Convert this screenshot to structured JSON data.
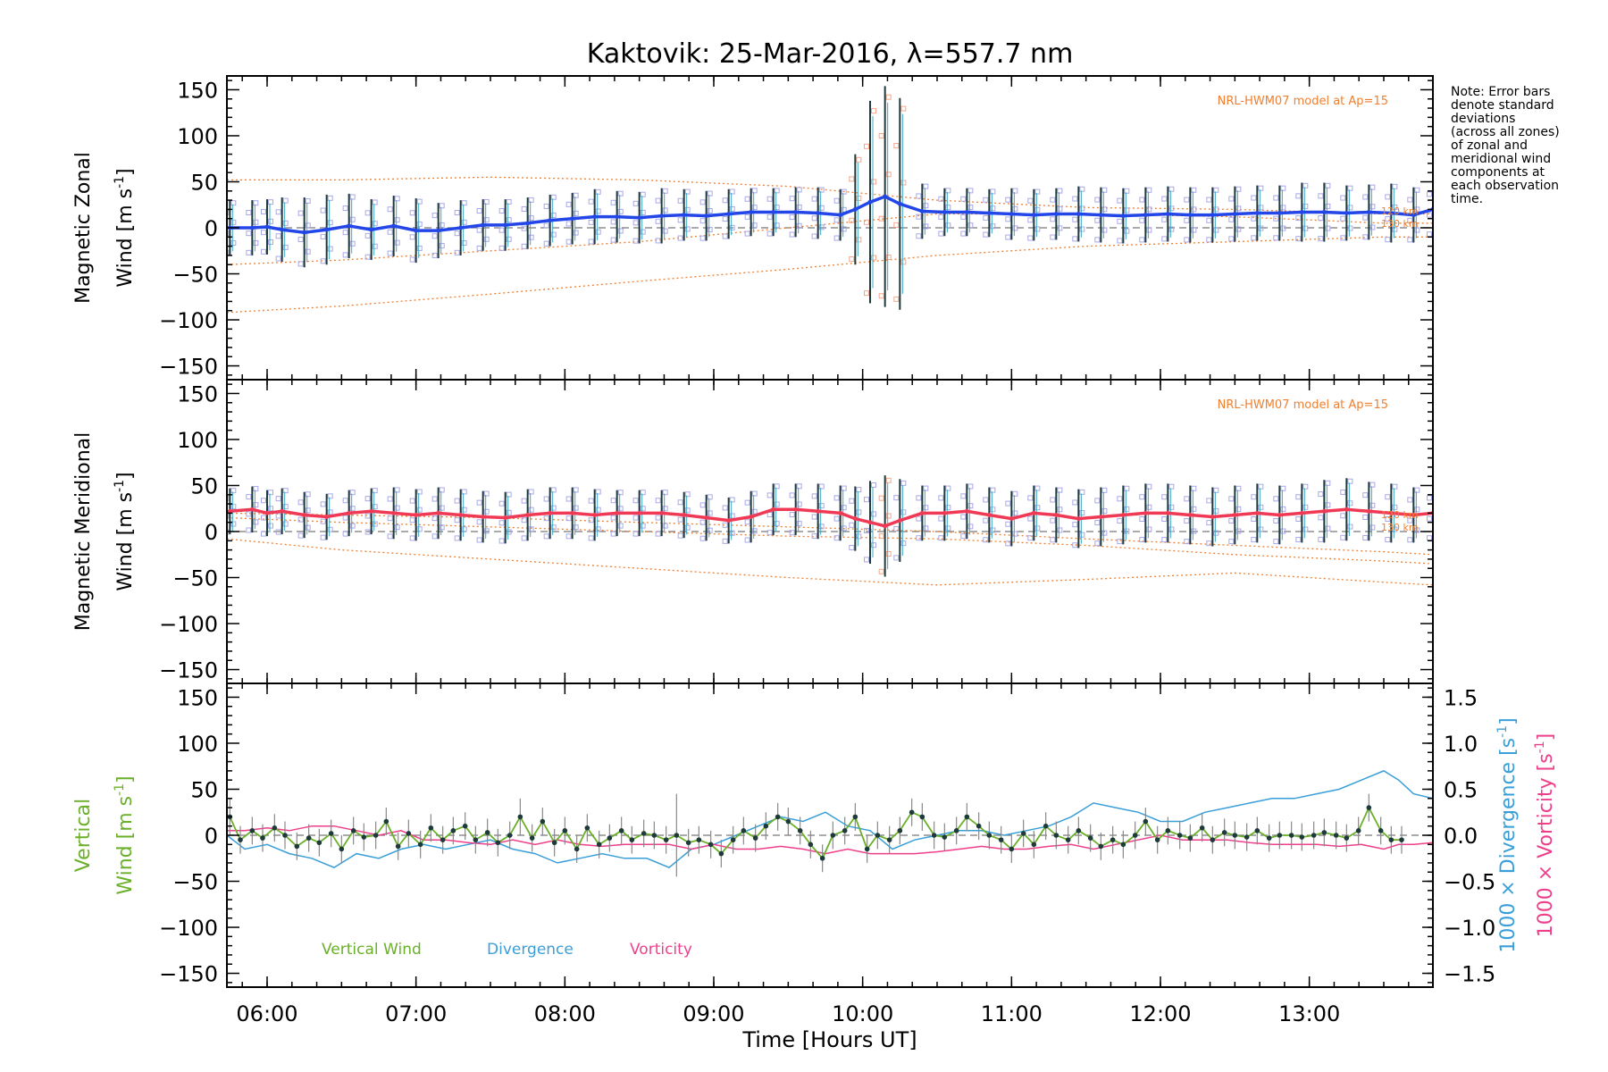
{
  "colors": {
    "zonal": "#2346e8",
    "meridional": "#f03a55",
    "vertical": "#6ab02a",
    "divergence": "#3a9fd8",
    "vorticity": "#ee3f8a",
    "model": "#f08030",
    "scatter": "#a8a8e8",
    "errorbar": "#1f3a3a"
  },
  "chart_data": {
    "type": "line",
    "title": "Kaktovik: 25-Mar-2016, λ=557.7 nm",
    "xlabel": "Time [Hours UT]",
    "x_tick_labels": [
      "06:00",
      "07:00",
      "08:00",
      "09:00",
      "10:00",
      "11:00",
      "12:00",
      "13:00"
    ],
    "x_tick_values": [
      6,
      7,
      8,
      9,
      10,
      11,
      12,
      13
    ],
    "xlim": [
      5.73,
      13.83
    ],
    "y_tick_labels": [
      "150",
      "100",
      "50",
      "0",
      "−50",
      "−100",
      "−150"
    ],
    "y_tick_values": [
      150,
      100,
      50,
      0,
      -50,
      -100,
      -150
    ],
    "ylim": [
      -165,
      165
    ],
    "right_tick_labels": [
      "1.5",
      "1.0",
      "0.5",
      "0.0",
      "−0.5",
      "−1.0",
      "−1.5"
    ],
    "right_tick_values": [
      1.5,
      1.0,
      0.5,
      0.0,
      -0.5,
      -1.0,
      -1.5
    ],
    "note": [
      "Note: Error bars",
      "denote standard",
      "deviations",
      "(across all zones)",
      "of zonal and",
      "meridional wind",
      "components at",
      "each observation",
      "time."
    ],
    "panels": [
      {
        "ylabel_line1": "Magnetic Zonal",
        "ylabel_line2": "Wind [m s",
        "ylabel_sup": "-1",
        "ylabel_end": "]",
        "model_label": "NRL-HWM07 model at Ap=15",
        "alt_labels": [
          "120 km",
          "130 km"
        ],
        "series": {
          "name": "",
          "x": [
            5.75,
            5.9,
            6.0,
            6.1,
            6.25,
            6.4,
            6.55,
            6.7,
            6.85,
            7.0,
            7.15,
            7.3,
            7.45,
            7.6,
            7.75,
            7.9,
            8.05,
            8.2,
            8.35,
            8.5,
            8.65,
            8.8,
            8.95,
            9.1,
            9.25,
            9.4,
            9.55,
            9.7,
            9.85,
            9.95,
            10.05,
            10.15,
            10.25,
            10.4,
            10.55,
            10.7,
            10.85,
            11.0,
            11.15,
            11.3,
            11.45,
            11.6,
            11.75,
            11.9,
            12.05,
            12.2,
            12.35,
            12.5,
            12.65,
            12.8,
            12.95,
            13.1,
            13.25,
            13.4,
            13.55,
            13.7,
            13.83
          ],
          "values": [
            0,
            0,
            1,
            -2,
            -5,
            -2,
            2,
            -2,
            2,
            -3,
            -3,
            0,
            3,
            3,
            5,
            8,
            10,
            12,
            12,
            11,
            13,
            14,
            13,
            15,
            17,
            17,
            17,
            16,
            14,
            20,
            28,
            34,
            26,
            18,
            17,
            17,
            16,
            15,
            14,
            15,
            15,
            14,
            13,
            14,
            15,
            14,
            14,
            15,
            16,
            16,
            17,
            17,
            16,
            17,
            16,
            14,
            20
          ],
          "err": [
            30,
            30,
            30,
            35,
            38,
            38,
            35,
            33,
            33,
            35,
            30,
            30,
            28,
            28,
            28,
            28,
            28,
            30,
            28,
            28,
            30,
            28,
            27,
            27,
            26,
            26,
            27,
            28,
            28,
            60,
            110,
            120,
            115,
            30,
            26,
            26,
            26,
            28,
            28,
            28,
            30,
            30,
            30,
            30,
            30,
            30,
            30,
            30,
            30,
            30,
            32,
            32,
            30,
            30,
            32,
            30,
            30
          ]
        },
        "model_x": [
          5.73,
          6.5,
          7.5,
          8.5,
          9.5,
          10.5,
          11.5,
          12.5,
          13.5,
          13.83
        ],
        "model_upper": [
          52,
          52,
          55,
          52,
          45,
          30,
          22,
          20,
          15,
          15
        ],
        "model_mid": [
          -40,
          -35,
          -25,
          -15,
          0,
          15,
          15,
          12,
          5,
          5
        ],
        "model_lower": [
          -92,
          -85,
          -72,
          -58,
          -45,
          -30,
          -20,
          -15,
          -10,
          -10
        ],
        "ylim": [
          -165,
          165
        ]
      },
      {
        "ylabel_line1": "Magnetic Meridional",
        "ylabel_line2": "Wind [m s",
        "ylabel_sup": "-1",
        "ylabel_end": "]",
        "model_label": "NRL-HWM07 model at Ap=15",
        "alt_labels": [
          "120 km",
          "130 km"
        ],
        "series": {
          "name": "",
          "x": [
            5.75,
            5.9,
            6.0,
            6.1,
            6.25,
            6.4,
            6.55,
            6.7,
            6.85,
            7.0,
            7.15,
            7.3,
            7.45,
            7.6,
            7.75,
            7.9,
            8.05,
            8.2,
            8.35,
            8.5,
            8.65,
            8.8,
            8.95,
            9.1,
            9.25,
            9.4,
            9.55,
            9.7,
            9.85,
            9.95,
            10.05,
            10.15,
            10.25,
            10.4,
            10.55,
            10.7,
            10.85,
            11.0,
            11.15,
            11.3,
            11.45,
            11.6,
            11.75,
            11.9,
            12.05,
            12.2,
            12.35,
            12.5,
            12.65,
            12.8,
            12.95,
            13.1,
            13.25,
            13.4,
            13.55,
            13.7,
            13.83
          ],
          "values": [
            22,
            24,
            20,
            22,
            18,
            16,
            20,
            22,
            20,
            18,
            20,
            18,
            16,
            15,
            18,
            20,
            20,
            18,
            20,
            20,
            20,
            18,
            15,
            12,
            16,
            24,
            24,
            22,
            20,
            14,
            10,
            6,
            12,
            20,
            20,
            22,
            18,
            14,
            20,
            18,
            14,
            16,
            18,
            20,
            20,
            18,
            16,
            18,
            20,
            18,
            20,
            22,
            24,
            22,
            20,
            18,
            20
          ],
          "err": [
            25,
            25,
            25,
            25,
            25,
            25,
            25,
            25,
            28,
            28,
            28,
            28,
            28,
            28,
            28,
            28,
            28,
            28,
            25,
            25,
            25,
            25,
            25,
            25,
            28,
            28,
            28,
            30,
            30,
            35,
            45,
            55,
            45,
            30,
            30,
            30,
            30,
            30,
            30,
            30,
            32,
            32,
            32,
            32,
            32,
            32,
            32,
            32,
            32,
            32,
            32,
            34,
            34,
            32,
            32,
            30,
            30
          ]
        },
        "model_x": [
          5.73,
          6.5,
          7.5,
          8.5,
          9.5,
          10.5,
          11.5,
          12.5,
          13.5,
          13.83
        ],
        "model_upper": [
          20,
          18,
          15,
          10,
          5,
          0,
          -8,
          -15,
          -22,
          -25
        ],
        "model_mid": [
          15,
          10,
          5,
          0,
          -5,
          -8,
          -15,
          -25,
          -32,
          -35
        ],
        "model_lower": [
          -8,
          -20,
          -30,
          -40,
          -50,
          -58,
          -52,
          -45,
          -55,
          -58
        ],
        "ylim": [
          -165,
          165
        ]
      },
      {
        "ylabel_line1": "Vertical",
        "ylabel_line2": "Wind [m s",
        "ylabel_sup": "-1",
        "ylabel_end": "]",
        "right_label_div": "1000 × Divergence [s",
        "right_label_vort": "1000 × Vorticity [s",
        "right_label_sup": "-1",
        "right_label_end": "]",
        "legend": [
          "Vertical Wind",
          "Divergence",
          "Vorticity"
        ],
        "vertical": {
          "x": [
            5.75,
            5.82,
            5.9,
            5.97,
            6.05,
            6.12,
            6.2,
            6.28,
            6.35,
            6.43,
            6.5,
            6.58,
            6.65,
            6.73,
            6.8,
            6.88,
            6.95,
            7.03,
            7.1,
            7.18,
            7.25,
            7.33,
            7.4,
            7.48,
            7.55,
            7.63,
            7.7,
            7.78,
            7.85,
            7.93,
            8.0,
            8.08,
            8.15,
            8.23,
            8.3,
            8.38,
            8.45,
            8.53,
            8.6,
            8.68,
            8.75,
            8.83,
            8.9,
            8.98,
            9.05,
            9.13,
            9.2,
            9.28,
            9.35,
            9.43,
            9.5,
            9.58,
            9.65,
            9.73,
            9.8,
            9.88,
            9.95,
            10.03,
            10.1,
            10.18,
            10.25,
            10.33,
            10.4,
            10.48,
            10.55,
            10.63,
            10.7,
            10.78,
            10.85,
            10.93,
            11.0,
            11.08,
            11.15,
            11.23,
            11.3,
            11.38,
            11.45,
            11.53,
            11.6,
            11.68,
            11.75,
            11.83,
            11.9,
            11.98,
            12.05,
            12.13,
            12.2,
            12.28,
            12.35,
            12.43,
            12.5,
            12.58,
            12.65,
            12.73,
            12.8,
            12.88,
            12.95,
            13.03,
            13.1,
            13.18,
            13.25,
            13.33,
            13.4,
            13.48,
            13.55,
            13.62
          ],
          "values": [
            20,
            -5,
            5,
            -3,
            8,
            0,
            -12,
            -3,
            -8,
            2,
            -15,
            5,
            -2,
            0,
            15,
            -12,
            2,
            -10,
            8,
            -5,
            5,
            10,
            -5,
            3,
            -8,
            0,
            20,
            -3,
            15,
            -8,
            5,
            -15,
            8,
            -10,
            -3,
            5,
            -5,
            2,
            0,
            -5,
            0,
            -8,
            -5,
            -10,
            -20,
            -5,
            5,
            -3,
            10,
            20,
            15,
            5,
            -10,
            -25,
            0,
            5,
            20,
            -15,
            0,
            -5,
            5,
            25,
            20,
            0,
            -2,
            5,
            20,
            10,
            0,
            -5,
            -15,
            2,
            -10,
            10,
            0,
            -5,
            5,
            -3,
            -12,
            -5,
            -10,
            0,
            15,
            -5,
            5,
            0,
            -3,
            8,
            -5,
            3,
            0,
            -2,
            5,
            -3,
            0,
            0,
            -2,
            0,
            3,
            0,
            -3,
            5,
            30,
            5,
            -5,
            -5
          ],
          "err": [
            20,
            15,
            15,
            15,
            15,
            15,
            15,
            15,
            15,
            15,
            15,
            15,
            15,
            15,
            15,
            15,
            15,
            15,
            15,
            15,
            15,
            15,
            15,
            15,
            15,
            15,
            20,
            15,
            15,
            15,
            15,
            15,
            15,
            15,
            15,
            15,
            15,
            15,
            15,
            15,
            45,
            15,
            15,
            15,
            15,
            15,
            15,
            15,
            15,
            15,
            15,
            15,
            15,
            15,
            15,
            15,
            15,
            15,
            15,
            15,
            15,
            15,
            15,
            15,
            15,
            15,
            15,
            15,
            15,
            15,
            15,
            15,
            15,
            15,
            15,
            15,
            15,
            15,
            15,
            15,
            15,
            15,
            15,
            15,
            15,
            15,
            15,
            15,
            15,
            15,
            15,
            15,
            15,
            15,
            15,
            15,
            15,
            15,
            15,
            15,
            15,
            15,
            15,
            15,
            15,
            15
          ]
        },
        "divergence": {
          "x": [
            5.73,
            5.85,
            6.0,
            6.15,
            6.3,
            6.45,
            6.6,
            6.75,
            6.9,
            7.05,
            7.2,
            7.35,
            7.5,
            7.65,
            7.8,
            7.95,
            8.1,
            8.25,
            8.4,
            8.55,
            8.7,
            8.85,
            9.0,
            9.15,
            9.3,
            9.45,
            9.6,
            9.75,
            9.9,
            10.05,
            10.2,
            10.35,
            10.5,
            10.65,
            10.8,
            10.95,
            11.1,
            11.25,
            11.4,
            11.55,
            11.7,
            11.85,
            12.0,
            12.15,
            12.3,
            12.45,
            12.6,
            12.75,
            12.9,
            13.05,
            13.2,
            13.35,
            13.5,
            13.6,
            13.7,
            13.83
          ],
          "values": [
            0.0,
            -0.15,
            -0.1,
            -0.2,
            -0.25,
            -0.35,
            -0.2,
            -0.25,
            -0.15,
            -0.1,
            -0.15,
            -0.1,
            -0.05,
            -0.15,
            -0.2,
            -0.3,
            -0.25,
            -0.2,
            -0.25,
            -0.25,
            -0.35,
            -0.15,
            -0.1,
            0.0,
            0.1,
            0.2,
            0.15,
            0.25,
            0.1,
            0.05,
            -0.15,
            -0.05,
            0.0,
            0.05,
            0.05,
            0.0,
            0.05,
            0.1,
            0.2,
            0.35,
            0.3,
            0.25,
            0.15,
            0.15,
            0.25,
            0.3,
            0.35,
            0.4,
            0.4,
            0.45,
            0.5,
            0.6,
            0.7,
            0.6,
            0.45,
            0.4
          ]
        },
        "vorticity": {
          "x": [
            5.73,
            5.85,
            6.0,
            6.15,
            6.3,
            6.45,
            6.6,
            6.75,
            6.9,
            7.05,
            7.2,
            7.35,
            7.5,
            7.65,
            7.8,
            7.95,
            8.1,
            8.25,
            8.4,
            8.55,
            8.7,
            8.85,
            9.0,
            9.15,
            9.3,
            9.45,
            9.6,
            9.75,
            9.9,
            10.05,
            10.2,
            10.35,
            10.5,
            10.65,
            10.8,
            10.95,
            11.1,
            11.25,
            11.4,
            11.55,
            11.7,
            11.85,
            12.0,
            12.15,
            12.3,
            12.45,
            12.6,
            12.75,
            12.9,
            13.05,
            13.2,
            13.35,
            13.5,
            13.6,
            13.7,
            13.83
          ],
          "values": [
            0.05,
            0.05,
            0.08,
            0.05,
            0.1,
            0.1,
            0.05,
            0.0,
            0.05,
            -0.05,
            -0.05,
            -0.08,
            -0.1,
            -0.05,
            -0.1,
            -0.05,
            -0.1,
            -0.12,
            -0.1,
            -0.1,
            -0.1,
            -0.15,
            -0.1,
            -0.15,
            -0.15,
            -0.12,
            -0.15,
            -0.2,
            -0.15,
            -0.2,
            -0.2,
            -0.2,
            -0.18,
            -0.15,
            -0.12,
            -0.15,
            -0.15,
            -0.12,
            -0.1,
            -0.15,
            -0.1,
            -0.05,
            0.0,
            -0.05,
            -0.05,
            -0.05,
            -0.08,
            -0.1,
            -0.1,
            -0.1,
            -0.12,
            -0.1,
            -0.15,
            -0.1,
            -0.1,
            -0.08
          ]
        },
        "ylim": [
          -165,
          165
        ],
        "right_ylim": [
          -1.65,
          1.65
        ]
      }
    ]
  }
}
